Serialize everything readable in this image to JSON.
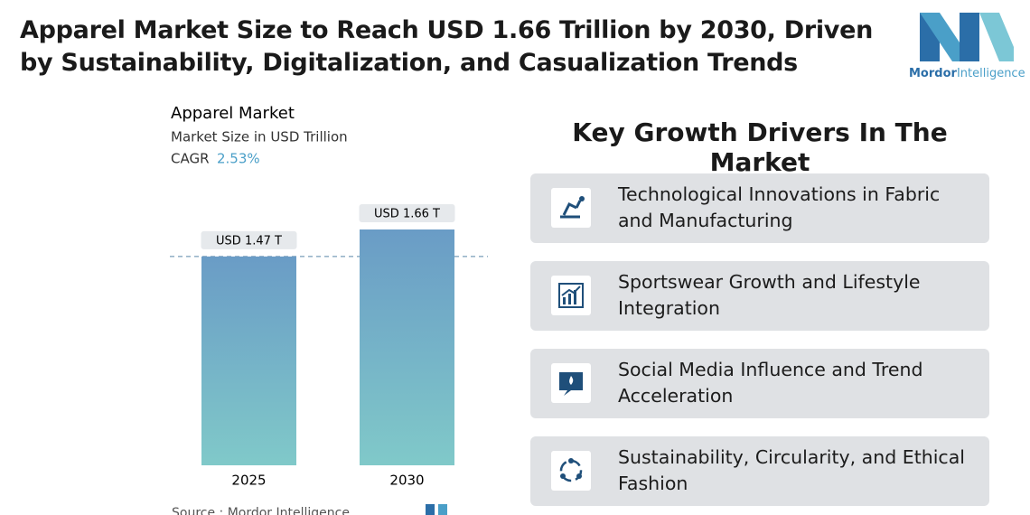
{
  "header": {
    "title": "Apparel Market Size to Reach USD 1.66 Trillion by 2030, Driven by Sustainability, Digitalization, and Casualization Trends",
    "logo_brand": "Mordor",
    "logo_suffix": "Intelligence"
  },
  "chart_data": {
    "type": "bar",
    "title": "Apparel Market",
    "subtitle": "Market Size in USD Trillion",
    "cagr_label": "CAGR",
    "cagr_value": "2.53%",
    "categories": [
      "2025",
      "2030"
    ],
    "values": [
      1.47,
      1.66
    ],
    "value_labels": [
      "USD 1.47 T",
      "USD 1.66 T"
    ],
    "color_top": "#6a9cc6",
    "color_bottom": "#80c9c9",
    "source": "Source :  Mordor Intelligence"
  },
  "drivers": {
    "heading": "Key Growth Drivers In The Market",
    "items": [
      "Technological Innovations in Fabric and Manufacturing",
      "Sportswear Growth and Lifestyle Integration",
      "Social Media Influence and Trend Acceleration",
      "Sustainability, Circularity, and Ethical Fashion"
    ]
  }
}
